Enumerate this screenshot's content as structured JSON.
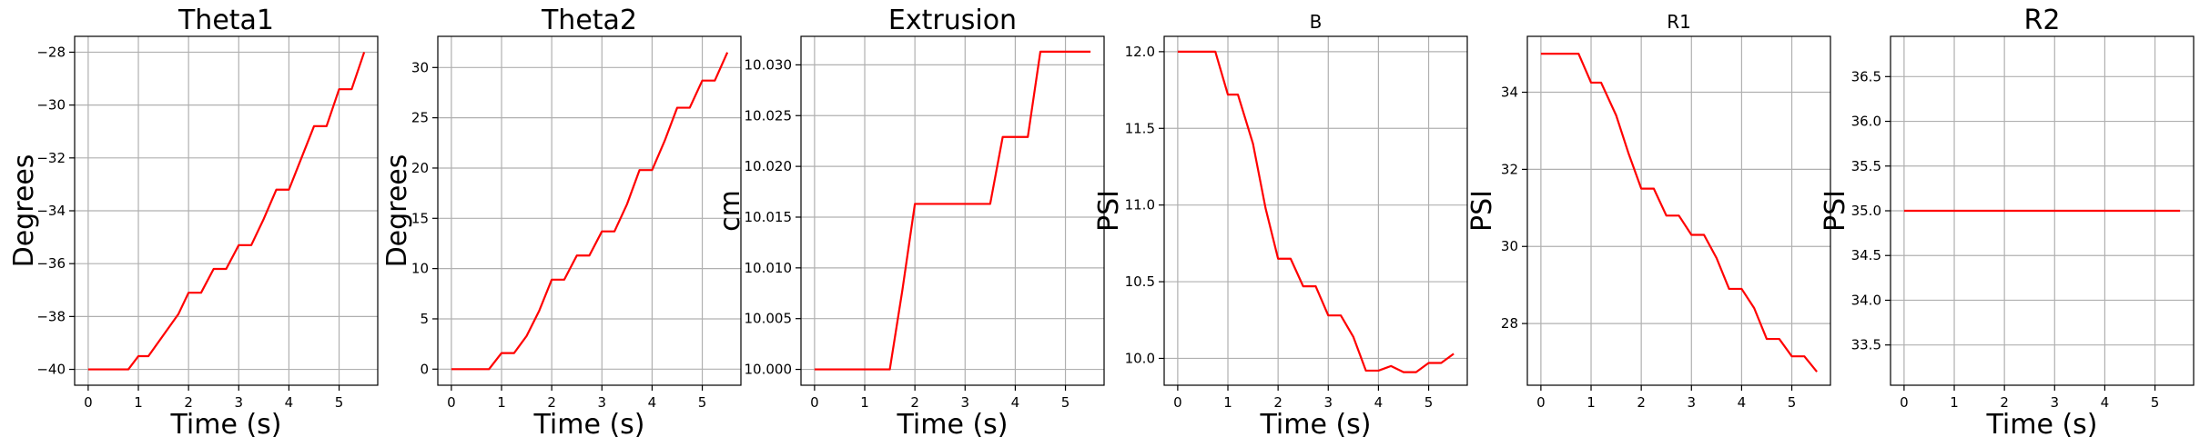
{
  "chart_data": [
    {
      "type": "line",
      "title": "Theta1",
      "xlabel": "Time (s)",
      "ylabel": "Degrees",
      "xlim": [
        -0.27,
        5.77
      ],
      "ylim": [
        -40.6,
        -27.4
      ],
      "xticks": [
        0,
        1,
        2,
        3,
        4,
        5
      ],
      "xtick_labels": [
        "0",
        "1",
        "2",
        "3",
        "4",
        "5"
      ],
      "yticks": [
        -40,
        -38,
        -36,
        -34,
        -32,
        -30,
        -28
      ],
      "ytick_labels": [
        "−40",
        "−38",
        "−36",
        "−34",
        "−32",
        "−30",
        "−28"
      ],
      "grid": true,
      "series": [
        {
          "color": "#ff0000",
          "x": [
            0,
            0.8,
            1.0,
            1.2,
            1.5,
            1.8,
            2.0,
            2.25,
            2.5,
            2.75,
            3.0,
            3.25,
            3.5,
            3.75,
            4.0,
            4.25,
            4.5,
            4.75,
            5.0,
            5.25,
            5.5
          ],
          "y": [
            -40.0,
            -40.0,
            -39.5,
            -39.5,
            -38.7,
            -37.9,
            -37.1,
            -37.1,
            -36.2,
            -36.2,
            -35.3,
            -35.3,
            -34.3,
            -33.2,
            -33.2,
            -32.0,
            -30.8,
            -30.8,
            -29.4,
            -29.4,
            -28.0
          ]
        }
      ]
    },
    {
      "type": "line",
      "title": "Theta2",
      "xlabel": "Time (s)",
      "ylabel": "Degrees",
      "xlim": [
        -0.27,
        5.77
      ],
      "ylim": [
        -1.6,
        33.1
      ],
      "xticks": [
        0,
        1,
        2,
        3,
        4,
        5
      ],
      "xtick_labels": [
        "0",
        "1",
        "2",
        "3",
        "4",
        "5"
      ],
      "yticks": [
        0,
        5,
        10,
        15,
        20,
        25,
        30
      ],
      "ytick_labels": [
        "0",
        "5",
        "10",
        "15",
        "20",
        "25",
        "30"
      ],
      "grid": true,
      "series": [
        {
          "color": "#ff0000",
          "x": [
            0,
            0.75,
            1.0,
            1.25,
            1.5,
            1.75,
            2.0,
            2.25,
            2.5,
            2.75,
            3.0,
            3.25,
            3.5,
            3.75,
            4.0,
            4.25,
            4.5,
            4.75,
            5.0,
            5.25,
            5.5
          ],
          "y": [
            0.0,
            0.0,
            1.6,
            1.6,
            3.3,
            5.8,
            8.9,
            8.9,
            11.3,
            11.3,
            13.7,
            13.7,
            16.4,
            19.8,
            19.8,
            22.7,
            26.0,
            26.0,
            28.7,
            28.7,
            31.5
          ]
        }
      ]
    },
    {
      "type": "line",
      "title": "Extrusion",
      "xlabel": "Time (s)",
      "ylabel": "cm",
      "xlim": [
        -0.27,
        5.77
      ],
      "ylim": [
        9.99844,
        10.03281
      ],
      "xticks": [
        0,
        1,
        2,
        3,
        4,
        5
      ],
      "xtick_labels": [
        "0",
        "1",
        "2",
        "3",
        "4",
        "5"
      ],
      "yticks": [
        10.0,
        10.005,
        10.01,
        10.015,
        10.02,
        10.025,
        10.03
      ],
      "ytick_labels": [
        "10.000",
        "10.005",
        "10.010",
        "10.015",
        "10.020",
        "10.025",
        "10.030"
      ],
      "grid": true,
      "series": [
        {
          "color": "#ff0000",
          "x": [
            0,
            0.5,
            1.0,
            1.5,
            1.75,
            2.0,
            2.25,
            2.5,
            3.0,
            3.5,
            3.75,
            4.0,
            4.25,
            4.5,
            5.0,
            5.5
          ],
          "y": [
            10.0,
            10.0,
            10.0,
            10.0,
            10.0078,
            10.0163,
            10.0163,
            10.0163,
            10.0163,
            10.0163,
            10.0229,
            10.0229,
            10.0229,
            10.0313,
            10.0313,
            10.0313
          ]
        }
      ]
    },
    {
      "type": "line",
      "title": "B",
      "xlabel": "Time (s)",
      "ylabel": "PSI",
      "xlim": [
        -0.27,
        5.77
      ],
      "ylim": [
        9.825,
        12.1
      ],
      "xticks": [
        0,
        1,
        2,
        3,
        4,
        5
      ],
      "xtick_labels": [
        "0",
        "1",
        "2",
        "3",
        "4",
        "5"
      ],
      "yticks": [
        10.0,
        10.5,
        11.0,
        11.5,
        12.0
      ],
      "ytick_labels": [
        "10.0",
        "10.5",
        "11.0",
        "11.5",
        "12.0"
      ],
      "grid": true,
      "series": [
        {
          "color": "#ff0000",
          "x": [
            0,
            0.75,
            1.0,
            1.2,
            1.5,
            1.75,
            2.0,
            2.25,
            2.5,
            2.75,
            3.0,
            3.25,
            3.5,
            3.75,
            4.0,
            4.25,
            4.5,
            4.75,
            5.0,
            5.25,
            5.5
          ],
          "y": [
            12.0,
            12.0,
            11.72,
            11.72,
            11.4,
            10.98,
            10.65,
            10.65,
            10.47,
            10.47,
            10.28,
            10.28,
            10.14,
            9.92,
            9.92,
            9.95,
            9.91,
            9.91,
            9.97,
            9.97,
            10.03
          ]
        }
      ]
    },
    {
      "type": "line",
      "title": "R1",
      "xlabel": "",
      "ylabel": "PSI",
      "xlim": [
        -0.27,
        5.77
      ],
      "ylim": [
        26.4,
        35.45
      ],
      "xticks": [
        0,
        1,
        2,
        3,
        4,
        5
      ],
      "xtick_labels": [
        "0",
        "1",
        "2",
        "3",
        "4",
        "5"
      ],
      "yticks": [
        28,
        30,
        32,
        34
      ],
      "ytick_labels": [
        "28",
        "30",
        "32",
        "34"
      ],
      "grid": true,
      "series": [
        {
          "color": "#ff0000",
          "x": [
            0,
            0.75,
            1.0,
            1.2,
            1.5,
            1.75,
            2.0,
            2.25,
            2.5,
            2.75,
            3.0,
            3.25,
            3.5,
            3.75,
            4.0,
            4.25,
            4.5,
            4.75,
            5.0,
            5.25,
            5.5
          ],
          "y": [
            35.0,
            35.0,
            34.25,
            34.25,
            33.4,
            32.4,
            31.5,
            31.5,
            30.8,
            30.8,
            30.3,
            30.3,
            29.7,
            28.9,
            28.9,
            28.4,
            27.6,
            27.6,
            27.15,
            27.15,
            26.75
          ]
        }
      ]
    },
    {
      "type": "line",
      "title": "R2",
      "xlabel": "Time (s)",
      "ylabel": "PSI",
      "xlim": [
        -0.27,
        5.77
      ],
      "ylim": [
        33.05,
        36.95
      ],
      "xticks": [
        0,
        1,
        2,
        3,
        4,
        5
      ],
      "xtick_labels": [
        "0",
        "1",
        "2",
        "3",
        "4",
        "5"
      ],
      "yticks": [
        33.5,
        34.0,
        34.5,
        35.0,
        35.5,
        36.0,
        36.5
      ],
      "ytick_labels": [
        "33.5",
        "34.0",
        "34.5",
        "35.0",
        "35.5",
        "36.0",
        "36.5"
      ],
      "grid": true,
      "series": [
        {
          "color": "#ff0000",
          "x": [
            0,
            5.5
          ],
          "y": [
            35.0,
            35.0
          ]
        }
      ]
    }
  ]
}
